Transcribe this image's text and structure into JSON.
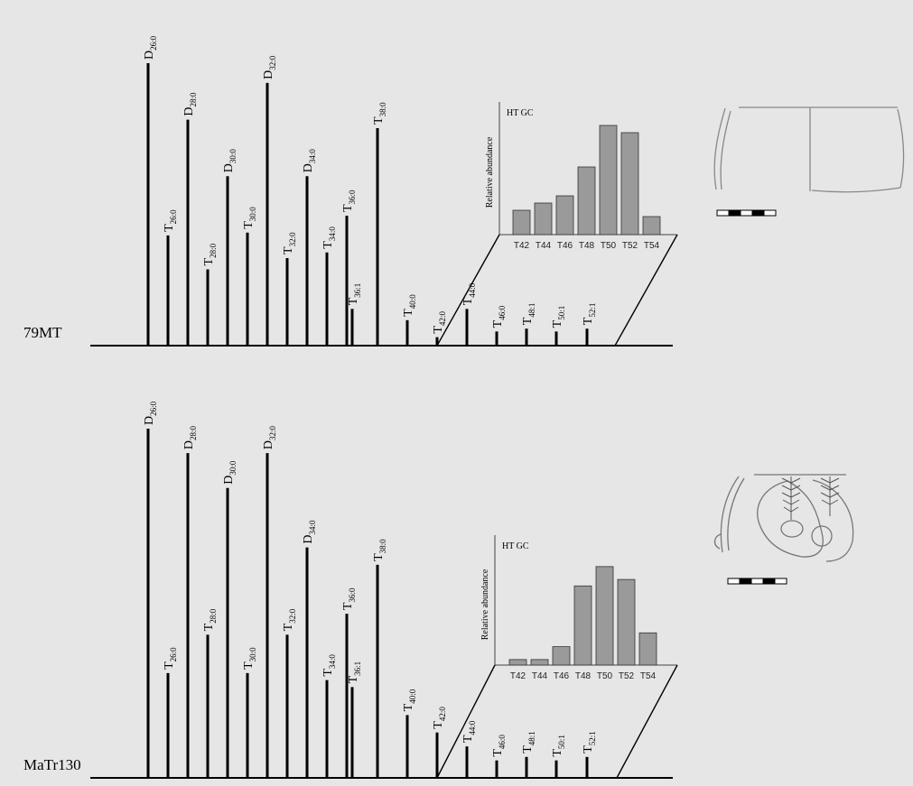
{
  "chart_data": [
    {
      "type": "bar",
      "sample": "79MT",
      "peaks": [
        {
          "label": "D",
          "sub": "26:0",
          "value": 100
        },
        {
          "label": "T",
          "sub": "26:0",
          "value": 39
        },
        {
          "label": "D",
          "sub": "28:0",
          "value": 80
        },
        {
          "label": "T",
          "sub": "28:0",
          "value": 27
        },
        {
          "label": "D",
          "sub": "30:0",
          "value": 60
        },
        {
          "label": "T",
          "sub": "30:0",
          "value": 40
        },
        {
          "label": "D",
          "sub": "32:0",
          "value": 93
        },
        {
          "label": "T",
          "sub": "32:0",
          "value": 31
        },
        {
          "label": "D",
          "sub": "34:0",
          "value": 60
        },
        {
          "label": "T",
          "sub": "34:0",
          "value": 33
        },
        {
          "label": "T",
          "sub": "36:0",
          "value": 46
        },
        {
          "label": "T",
          "sub": "36:1",
          "value": 13
        },
        {
          "label": "T",
          "sub": "38:0",
          "value": 77
        },
        {
          "label": "T",
          "sub": "40:0",
          "value": 9
        },
        {
          "label": "T",
          "sub": "42:0",
          "value": 3
        },
        {
          "label": "T",
          "sub": "44:0",
          "value": 13
        },
        {
          "label": "T",
          "sub": "46:0",
          "value": 5
        },
        {
          "label": "T",
          "sub": "48:1",
          "value": 6
        },
        {
          "label": "T",
          "sub": "50:1",
          "value": 5
        },
        {
          "label": "T",
          "sub": "52:1",
          "value": 6
        }
      ],
      "inset": {
        "title": "HT GC",
        "ylabel": "Relative abundance",
        "categories": [
          "T42",
          "T44",
          "T46",
          "T48",
          "T50",
          "T52",
          "T54"
        ],
        "values": [
          27,
          35,
          43,
          75,
          121,
          113,
          20
        ]
      }
    },
    {
      "type": "bar",
      "sample": "MaTr130",
      "peaks": [
        {
          "label": "D",
          "sub": "26:0",
          "value": 100
        },
        {
          "label": "T",
          "sub": "26:0",
          "value": 30
        },
        {
          "label": "D",
          "sub": "28:0",
          "value": 93
        },
        {
          "label": "T",
          "sub": "28:0",
          "value": 41
        },
        {
          "label": "D",
          "sub": "30:0",
          "value": 83
        },
        {
          "label": "T",
          "sub": "30:0",
          "value": 30
        },
        {
          "label": "D",
          "sub": "32:0",
          "value": 93
        },
        {
          "label": "T",
          "sub": "32:0",
          "value": 41
        },
        {
          "label": "D",
          "sub": "34:0",
          "value": 66
        },
        {
          "label": "T",
          "sub": "34:0",
          "value": 28
        },
        {
          "label": "T",
          "sub": "36:0",
          "value": 47
        },
        {
          "label": "T",
          "sub": "36:1",
          "value": 26
        },
        {
          "label": "T",
          "sub": "38:0",
          "value": 61
        },
        {
          "label": "T",
          "sub": "40:0",
          "value": 18
        },
        {
          "label": "T",
          "sub": "42:0",
          "value": 13
        },
        {
          "label": "T",
          "sub": "44:0",
          "value": 9
        },
        {
          "label": "T",
          "sub": "46:0",
          "value": 5
        },
        {
          "label": "T",
          "sub": "48:1",
          "value": 6
        },
        {
          "label": "T",
          "sub": "50:1",
          "value": 5
        },
        {
          "label": "T",
          "sub": "52:1",
          "value": 6
        }
      ],
      "inset": {
        "title": "HT GC",
        "ylabel": "Relative abundance",
        "categories": [
          "T42",
          "T44",
          "T46",
          "T48",
          "T50",
          "T52",
          "T54"
        ],
        "values": [
          6,
          6,
          20,
          86,
          107,
          93,
          35
        ]
      }
    }
  ]
}
